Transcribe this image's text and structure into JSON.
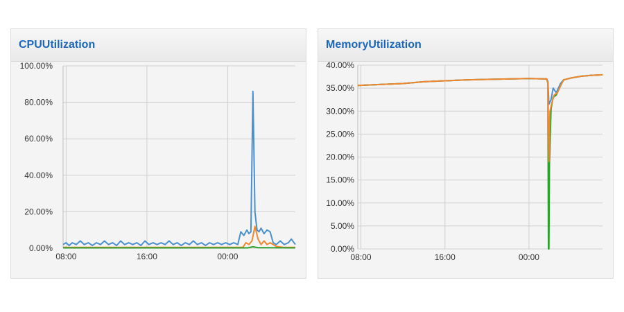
{
  "chart_data": [
    {
      "type": "line",
      "title": "CPUUtilization",
      "ylim": [
        0,
        100
      ],
      "y_ticks": [
        "0.00%",
        "20.00%",
        "40.00%",
        "60.00%",
        "80.00%",
        "100.00%"
      ],
      "y_tick_values": [
        0,
        20,
        40,
        60,
        80,
        100
      ],
      "x_ticks": [
        "08:00",
        "16:00",
        "00:00"
      ],
      "x_tick_hours": [
        8,
        16,
        24
      ],
      "xlim_hours": [
        7.7,
        30.7
      ],
      "grid": true,
      "series": [
        {
          "color": "#4a90d0",
          "x": [
            7.7,
            8.0,
            8.3,
            8.6,
            9.0,
            9.4,
            9.8,
            10.2,
            10.6,
            11.0,
            11.4,
            11.8,
            12.2,
            12.6,
            13.0,
            13.4,
            13.8,
            14.2,
            14.6,
            15.0,
            15.4,
            15.8,
            16.2,
            16.6,
            17.0,
            17.4,
            17.8,
            18.2,
            18.6,
            19.0,
            19.4,
            19.8,
            20.2,
            20.6,
            21.0,
            21.4,
            21.8,
            22.2,
            22.6,
            23.0,
            23.4,
            23.8,
            24.2,
            24.6,
            25.0,
            25.3,
            25.6,
            25.9,
            26.1,
            26.3,
            26.5,
            26.7,
            26.9,
            27.1,
            27.3,
            27.6,
            27.9,
            28.2,
            28.5,
            28.8,
            29.2,
            29.6,
            30.0,
            30.3,
            30.7
          ],
          "y": [
            2,
            3,
            1.5,
            3,
            2,
            4,
            2,
            3,
            1.5,
            3,
            2,
            4,
            2,
            3,
            1.5,
            4,
            2,
            3,
            2,
            3,
            1.5,
            4,
            2,
            3,
            2,
            3,
            2,
            4,
            2,
            3,
            1.5,
            3,
            2,
            4,
            2,
            3,
            1.5,
            3,
            2,
            3,
            2,
            3,
            2,
            3,
            2,
            9,
            7,
            10,
            8,
            9,
            86,
            20,
            10,
            9,
            11,
            8,
            10,
            9,
            3,
            2,
            4,
            2,
            3,
            5,
            2
          ]
        },
        {
          "color": "#f0862e",
          "x": [
            7.7,
            9,
            11,
            13,
            15,
            17,
            19,
            21,
            23,
            24.5,
            25.5,
            25.8,
            26.1,
            26.4,
            26.7,
            27.0,
            27.3,
            27.6,
            27.9,
            28.2,
            28.5,
            28.8,
            29.5,
            30.7
          ],
          "y": [
            0.5,
            0.5,
            0.5,
            0.5,
            0.5,
            0.5,
            0.5,
            0.5,
            0.5,
            0.5,
            0.5,
            3,
            2,
            4,
            12,
            5,
            2,
            4,
            2,
            3,
            2,
            1,
            0.5,
            0.5
          ]
        },
        {
          "color": "#2ca02c",
          "x": [
            7.7,
            12,
            17,
            22,
            26,
            26.5,
            27,
            30.7
          ],
          "y": [
            0.2,
            0.2,
            0.2,
            0.2,
            0.2,
            0.8,
            0.3,
            0.2
          ]
        }
      ]
    },
    {
      "type": "line",
      "title": "MemoryUtilization",
      "ylim": [
        0,
        40
      ],
      "y_ticks": [
        "0.00%",
        "5.00%",
        "10.00%",
        "15.00%",
        "20.00%",
        "25.00%",
        "30.00%",
        "35.00%",
        "40.00%"
      ],
      "y_tick_values": [
        0,
        5,
        10,
        15,
        20,
        25,
        30,
        35,
        40
      ],
      "x_ticks": [
        "08:00",
        "16:00",
        "00:00"
      ],
      "x_tick_hours": [
        8,
        16,
        24
      ],
      "xlim_hours": [
        7.7,
        31.0
      ],
      "grid": true,
      "series": [
        {
          "color": "#4a90d0",
          "x": [
            7.7,
            10,
            12,
            14,
            16,
            18,
            20,
            22,
            24,
            25.7,
            25.8,
            25.9,
            26.1,
            26.3,
            26.6,
            27,
            27.3,
            28,
            29,
            30,
            31.0
          ],
          "y": [
            35.6,
            35.8,
            36.0,
            36.4,
            36.6,
            36.8,
            36.9,
            37.0,
            37.1,
            37.0,
            36.5,
            31.5,
            32.5,
            35,
            34,
            36,
            36.8,
            37.2,
            37.6,
            37.8,
            37.9
          ]
        },
        {
          "color": "#2ca02c",
          "x": [
            7.7,
            10,
            12,
            14,
            16,
            18,
            20,
            22,
            24,
            25.7,
            25.8,
            25.85,
            25.9,
            25.95,
            26.1,
            26.3,
            26.6,
            27,
            27.3,
            28,
            29,
            30,
            31.0
          ],
          "y": [
            35.6,
            35.8,
            36.0,
            36.4,
            36.6,
            36.8,
            36.9,
            37.0,
            37.1,
            37.0,
            36.0,
            0,
            0,
            18.5,
            30.5,
            33,
            33.5,
            35.5,
            36.8,
            37.2,
            37.6,
            37.8,
            37.9
          ]
        },
        {
          "color": "#f0862e",
          "x": [
            7.7,
            10,
            12,
            14,
            16,
            18,
            20,
            22,
            24,
            25.7,
            25.8,
            25.9,
            26.0,
            26.2,
            26.4,
            26.7,
            27,
            27.3,
            28,
            29,
            30,
            31.0
          ],
          "y": [
            35.6,
            35.8,
            36.0,
            36.4,
            36.6,
            36.8,
            36.9,
            37.0,
            37.1,
            37.0,
            36.0,
            19,
            30,
            32,
            33.5,
            34,
            35.5,
            36.8,
            37.2,
            37.6,
            37.8,
            37.9
          ]
        }
      ]
    }
  ]
}
